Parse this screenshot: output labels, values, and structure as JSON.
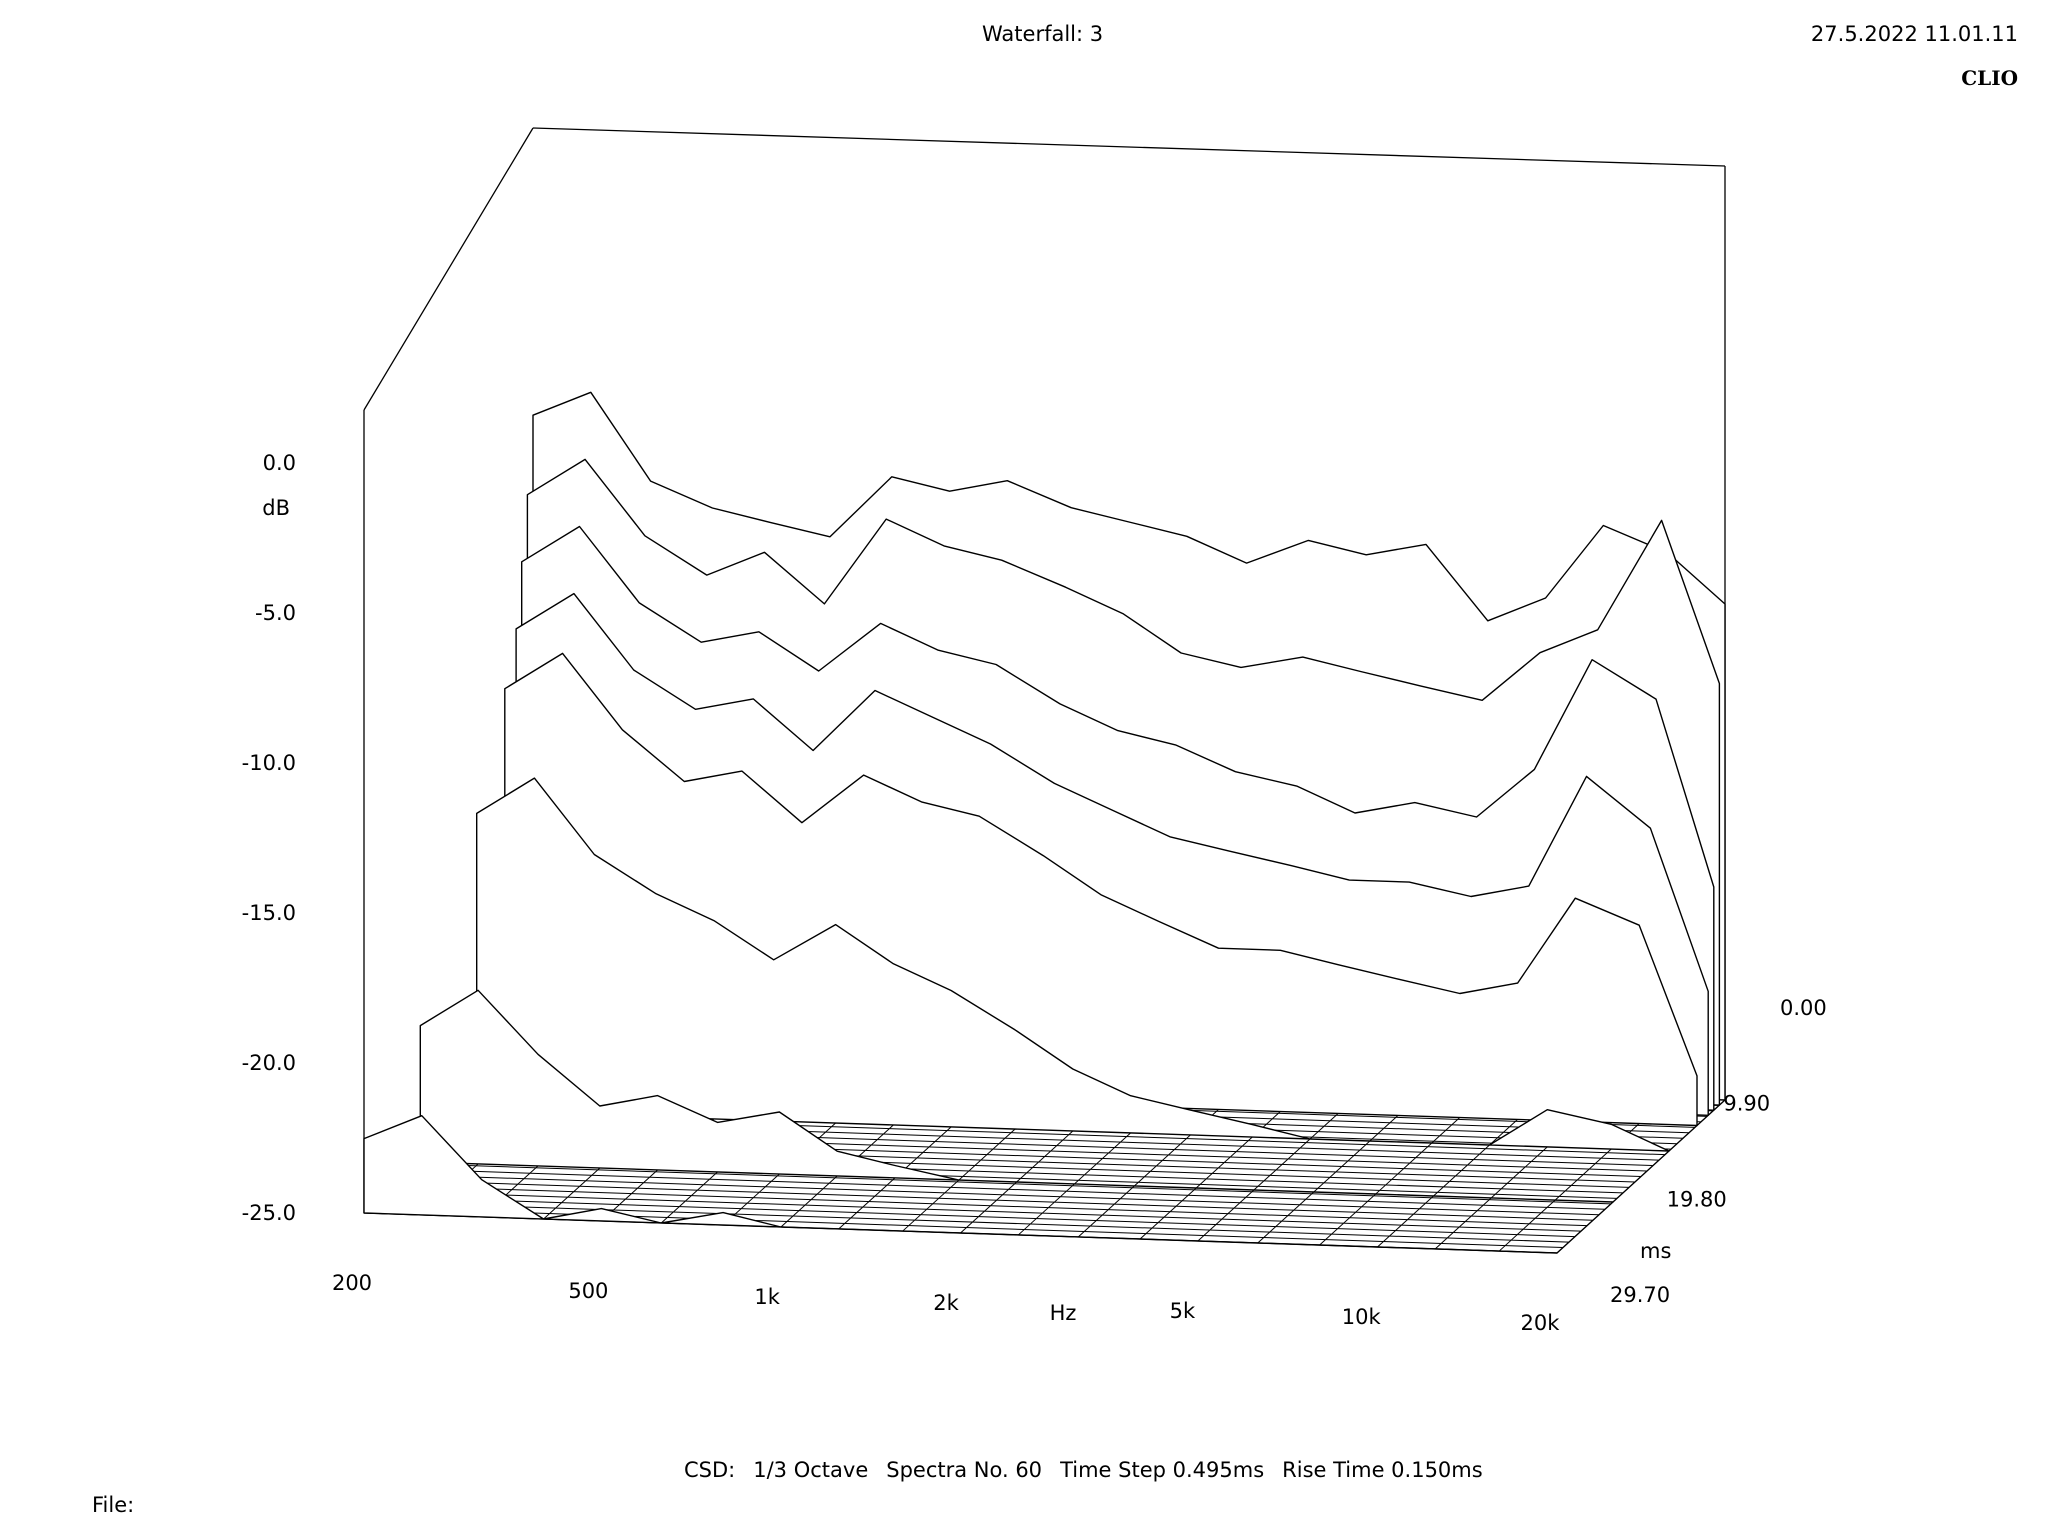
{
  "header": {
    "title": "Waterfall: 3",
    "timestamp": "27.5.2022 11.01.11",
    "brand": "CLIO"
  },
  "footer": {
    "mode": "CSD:",
    "smoothing": "1/3 Octave",
    "spectra": "Spectra No. 60",
    "time_step": "Time Step 0.495ms",
    "rise_time": "Rise Time 0.150ms",
    "file_label": "File:"
  },
  "colors": {
    "background": "#ffffff",
    "ink": "#000000"
  },
  "chart_data": {
    "type": "area",
    "title": "Waterfall: 3",
    "subtitle": "CSD:   1/3 Octave   Spectra No. 60   Time Step 0.495ms   Rise Time 0.150ms",
    "x_axis": {
      "label": "Hz",
      "scale": "log",
      "range": [
        200,
        20000
      ],
      "tick_values": [
        200,
        500,
        1000,
        2000,
        5000,
        10000,
        20000
      ],
      "tick_labels": [
        "200",
        "500",
        "1k",
        "2k",
        "5k",
        "10k",
        "20k"
      ]
    },
    "y_axis": {
      "label": "dB",
      "range": [
        -25,
        0
      ],
      "tick_values": [
        0,
        -5,
        -10,
        -15,
        -20,
        -25
      ],
      "tick_labels": [
        "0.0",
        "-5.0",
        "-10.0",
        "-15.0",
        "-20.0",
        "-25.0"
      ]
    },
    "z_axis": {
      "label": "ms",
      "range": [
        0,
        29.7
      ],
      "tick_values": [
        0,
        9.9,
        19.8,
        29.7
      ],
      "tick_labels": [
        "0.00",
        "9.90",
        "19.80",
        "29.70"
      ]
    },
    "spectra_count": 60,
    "time_step_ms": 0.495,
    "rise_time_ms": 0.15,
    "frequencies_hz": [
      200,
      250,
      315,
      400,
      500,
      630,
      800,
      1000,
      1250,
      1600,
      2000,
      2500,
      3150,
      4000,
      5000,
      6300,
      8000,
      10000,
      12500,
      16000,
      20000
    ],
    "slices": [
      {
        "time_ms": 0.0,
        "db": [
          1.0,
          2.0,
          -1.5,
          -2.5,
          -3.0,
          -3.5,
          -1.0,
          -1.5,
          -1.0,
          -2.0,
          -2.5,
          -3.0,
          -4.0,
          -3.0,
          -3.5,
          -3.0,
          -6.0,
          -5.0,
          -2.0,
          -3.0,
          -5.0
        ]
      },
      {
        "time_ms": 0.99,
        "db": [
          -2.0,
          -0.5,
          -3.5,
          -5.0,
          -4.0,
          -6.0,
          -2.5,
          -3.5,
          -4.0,
          -5.0,
          -6.0,
          -7.5,
          -8.0,
          -7.5,
          -8.0,
          -8.5,
          -9.0,
          -7.0,
          -6.0,
          -1.5,
          -8.0
        ]
      },
      {
        "time_ms": 1.98,
        "db": [
          -4.5,
          -3.0,
          -6.0,
          -7.5,
          -7.0,
          -8.5,
          -6.5,
          -7.5,
          -8.0,
          -9.5,
          -10.5,
          -11.0,
          -12.0,
          -12.5,
          -13.5,
          -13.0,
          -13.5,
          -11.5,
          -7.0,
          -8.5,
          -16.0
        ]
      },
      {
        "time_ms": 2.97,
        "db": [
          -7.0,
          -5.5,
          -8.5,
          -10.0,
          -9.5,
          -11.5,
          -9.0,
          -10.0,
          -11.0,
          -12.5,
          -13.5,
          -14.5,
          -15.0,
          -15.5,
          -16.0,
          -16.0,
          -16.5,
          -16.0,
          -11.5,
          -13.5,
          -20.0
        ]
      },
      {
        "time_ms": 4.95,
        "db": [
          -9.0,
          -7.5,
          -10.5,
          -12.5,
          -12.0,
          -14.0,
          -12.0,
          -13.0,
          -13.5,
          -15.0,
          -16.5,
          -17.5,
          -18.5,
          -18.5,
          -19.0,
          -19.5,
          -20.0,
          -19.5,
          -16.0,
          -17.0,
          -23.0
        ]
      },
      {
        "time_ms": 9.9,
        "db": [
          -13.0,
          -11.5,
          -14.5,
          -16.0,
          -17.0,
          -18.5,
          -17.0,
          -18.5,
          -19.5,
          -21.0,
          -22.5,
          -23.5,
          -24.0,
          -24.5,
          -25.0,
          -25.0,
          -25.0,
          -25.0,
          -23.5,
          -24.0,
          -25.0
        ]
      },
      {
        "time_ms": 19.8,
        "db": [
          -19.5,
          -18.0,
          -20.5,
          -22.5,
          -22.0,
          -23.0,
          -22.5,
          -24.0,
          -24.5,
          -25.0,
          -25.0,
          -25.0,
          -25.0,
          -25.0,
          -25.0,
          -25.0,
          -25.0,
          -25.0,
          -25.0,
          -25.0,
          -25.0
        ]
      },
      {
        "time_ms": 29.7,
        "db": [
          -22.0,
          -21.0,
          -23.5,
          -25.0,
          -24.5,
          -25.0,
          -24.5,
          -25.0,
          -25.0,
          -25.0,
          -25.0,
          -25.0,
          -25.0,
          -25.0,
          -25.0,
          -25.0,
          -25.0,
          -25.0,
          -25.0,
          -25.0,
          -25.0
        ]
      }
    ]
  }
}
